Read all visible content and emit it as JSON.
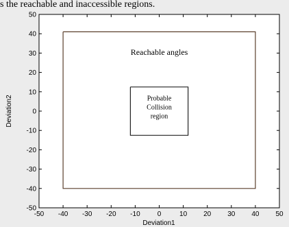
{
  "caption_fragment": "s the reachable and inaccessible regions.",
  "chart_data": {
    "type": "line",
    "title": "",
    "xlabel": "Deviation1",
    "ylabel": "Deviation2",
    "xlim": [
      -50,
      50
    ],
    "ylim": [
      -50,
      50
    ],
    "xticks": [
      -50,
      -40,
      -30,
      -20,
      -10,
      0,
      10,
      20,
      30,
      40,
      50
    ],
    "yticks": [
      -50,
      -40,
      -30,
      -20,
      -10,
      0,
      10,
      20,
      30,
      40,
      50
    ],
    "grid": false,
    "series": [
      {
        "x": [
          -40,
          40,
          40,
          -40,
          -40
        ],
        "y": [
          41,
          41,
          -40,
          -40,
          41
        ],
        "color": "#5a3e2b"
      },
      {
        "x": [
          -12,
          12,
          12,
          -12,
          -12
        ],
        "y": [
          12.5,
          12.5,
          -12.5,
          -12.5,
          12.5
        ],
        "color": "#222222"
      }
    ],
    "annotations": [
      {
        "text": "Reachable angles",
        "x": 0,
        "y": 29
      },
      {
        "lines": [
          "Probable",
          "Collision",
          "region"
        ],
        "x": 0,
        "y": 2
      }
    ]
  }
}
